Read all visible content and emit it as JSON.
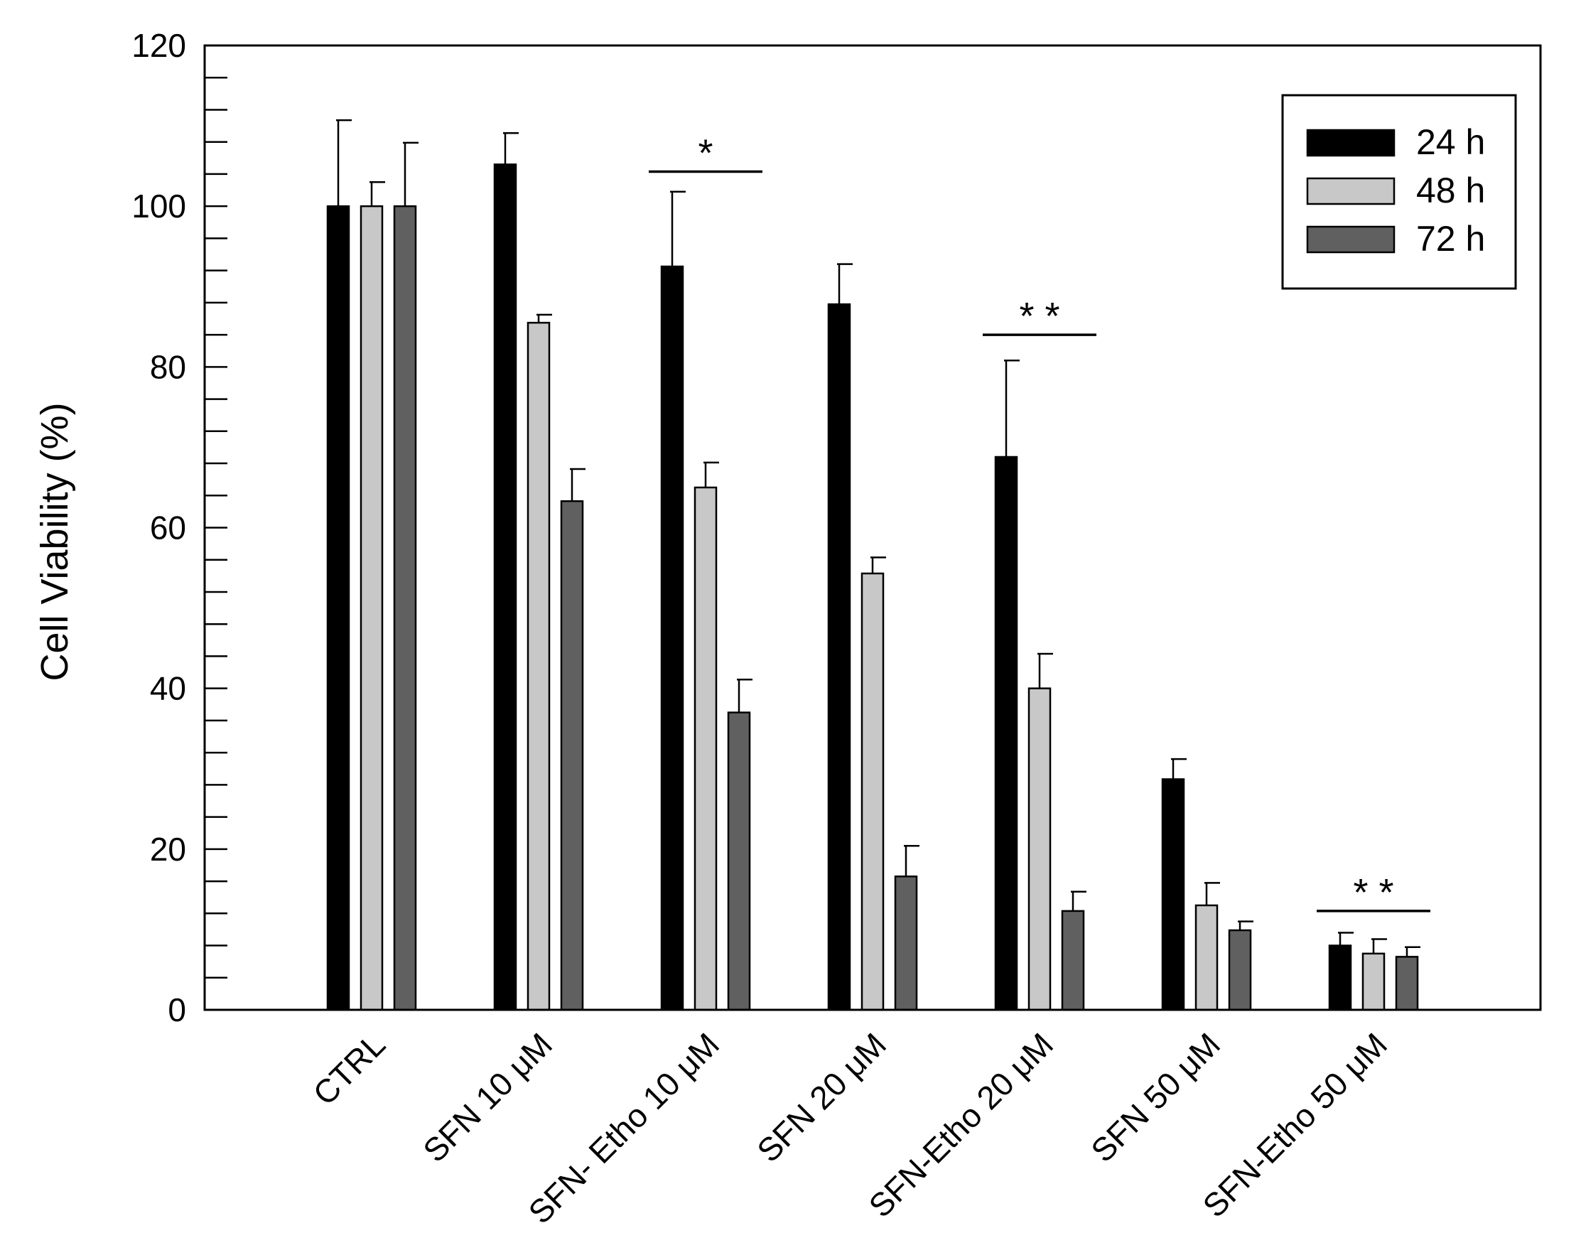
{
  "chart_data": {
    "type": "bar",
    "title": "",
    "xlabel": "",
    "ylabel": "Cell Viability (%)",
    "ylim": [
      0,
      120
    ],
    "yticks": [
      0,
      20,
      40,
      60,
      80,
      100,
      120
    ],
    "y_minor_step": 4,
    "grid": false,
    "legend_position": "top-right",
    "categories": [
      "CTRL",
      "SFN 10 μM",
      "SFN- Etho 10 μM",
      "SFN 20 μM",
      "SFN-Etho 20 μM",
      "SFN 50 μM",
      "SFN-Etho 50 μM"
    ],
    "series": [
      {
        "name": "24 h",
        "color": "#000000",
        "values": [
          100,
          105.2,
          92.5,
          87.8,
          68.8,
          28.7,
          8.0
        ],
        "errors": [
          10.7,
          3.9,
          9.3,
          5.0,
          12.0,
          2.5,
          1.6
        ]
      },
      {
        "name": "48 h",
        "color": "#c8c8c8",
        "values": [
          100,
          85.5,
          65.0,
          54.3,
          40.0,
          13.0,
          7.0
        ],
        "errors": [
          3.0,
          1.0,
          3.1,
          2.0,
          4.3,
          2.8,
          1.8
        ]
      },
      {
        "name": "72 h",
        "color": "#606060",
        "values": [
          100,
          63.3,
          37.0,
          16.6,
          12.3,
          9.9,
          6.6
        ],
        "errors": [
          7.9,
          4.0,
          4.1,
          3.8,
          2.4,
          1.1,
          1.2
        ]
      }
    ],
    "significance": [
      {
        "category_index": 2,
        "label": "*",
        "y": 104.3
      },
      {
        "category_index": 4,
        "label": "* *",
        "y": 84.0
      },
      {
        "category_index": 6,
        "label": "* *",
        "y": 12.3
      }
    ]
  }
}
